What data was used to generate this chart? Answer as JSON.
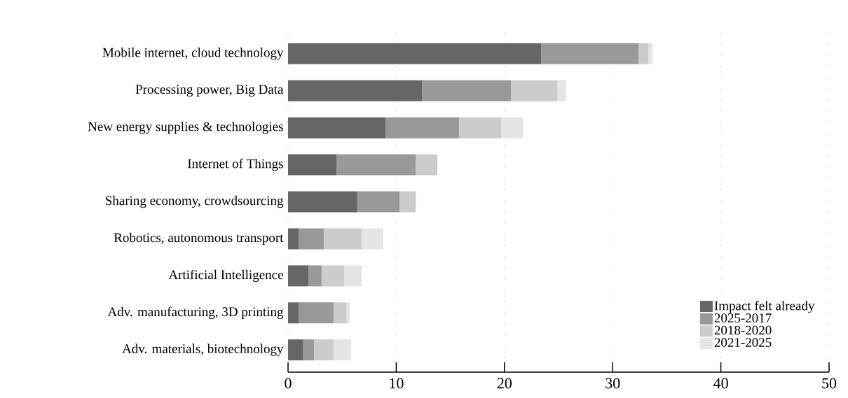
{
  "chart_data": {
    "type": "bar",
    "orientation": "horizontal",
    "stacked": true,
    "categories": [
      "Mobile internet, cloud technology",
      "Processing power, Big Data",
      "New energy supplies & technologies",
      "Internet of Things",
      "Sharing economy, crowdsourcing",
      "Robotics, autonomous transport",
      "Artificial Intelligence",
      "Adv. manufacturing, 3D printing",
      "Adv. materials, biotechnology"
    ],
    "series": [
      {
        "name": "Impact felt already",
        "color": "#666666",
        "values": [
          23.4,
          12.4,
          9.0,
          4.5,
          6.4,
          1.0,
          1.9,
          1.0,
          1.4
        ]
      },
      {
        "name": "2025-2017",
        "color": "#999999",
        "values": [
          9.0,
          8.2,
          6.8,
          7.3,
          3.9,
          2.3,
          1.2,
          3.2,
          1.0
        ]
      },
      {
        "name": "2018-2020",
        "color": "#cccccc",
        "values": [
          0.9,
          4.3,
          3.9,
          2.0,
          1.5,
          3.5,
          2.1,
          1.2,
          1.8
        ]
      },
      {
        "name": "2021-2025",
        "color": "#e5e5e5",
        "values": [
          0.4,
          0.8,
          2.0,
          0,
          0,
          2.0,
          1.6,
          0.3,
          1.6
        ]
      }
    ],
    "xlim": [
      0,
      50
    ],
    "xticks": [
      0,
      10,
      20,
      30,
      40,
      50
    ],
    "grid": "x",
    "legend": "bottom right"
  }
}
